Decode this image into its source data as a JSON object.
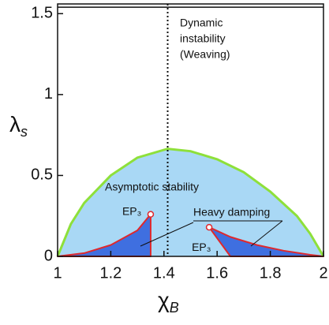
{
  "chart_data": {
    "type": "region",
    "xlabel": "χ",
    "xlabel_sub": "B",
    "ylabel": "λ",
    "ylabel_sub": "s",
    "xlim": [
      1,
      2
    ],
    "ylim": [
      0,
      1.56
    ],
    "xticks": [
      1,
      1.2,
      1.4,
      1.6,
      1.8,
      2
    ],
    "yticks": [
      0,
      0.5,
      1,
      1.5
    ],
    "hline": 1.54,
    "vline": 1.414,
    "boundary": {
      "color": "#8ee03a",
      "fill": "#a9d8f5",
      "x": [
        1,
        1.05,
        1.1,
        1.2,
        1.3,
        1.414,
        1.5,
        1.6,
        1.7,
        1.8,
        1.9,
        1.95,
        2
      ],
      "values": [
        0,
        0.2,
        0.33,
        0.5,
        0.61,
        0.665,
        0.65,
        0.6,
        0.52,
        0.4,
        0.25,
        0.14,
        0
      ]
    },
    "regions": [
      {
        "color": "#3f6fe0",
        "edge": "#e0282c",
        "x": [
          1,
          1.1,
          1.2,
          1.3,
          1.35,
          1.35
        ],
        "values": [
          0,
          0.02,
          0.07,
          0.16,
          0.26,
          0
        ]
      },
      {
        "color": "#3f6fe0",
        "edge": "#e0282c",
        "x": [
          1.57,
          1.65,
          1.75,
          1.85,
          1.95,
          2,
          1.65
        ],
        "values": [
          0.18,
          0.12,
          0.07,
          0.035,
          0.01,
          0,
          0
        ]
      }
    ],
    "points": {
      "x": [
        1.35,
        1.57
      ],
      "values": [
        0.26,
        0.18
      ],
      "labels": [
        "EP₃",
        "EP₃"
      ]
    },
    "annotations": [
      "Dynamic",
      "instability",
      "(Weaving)",
      "Asymptotic stability",
      "Heavy damping"
    ]
  }
}
